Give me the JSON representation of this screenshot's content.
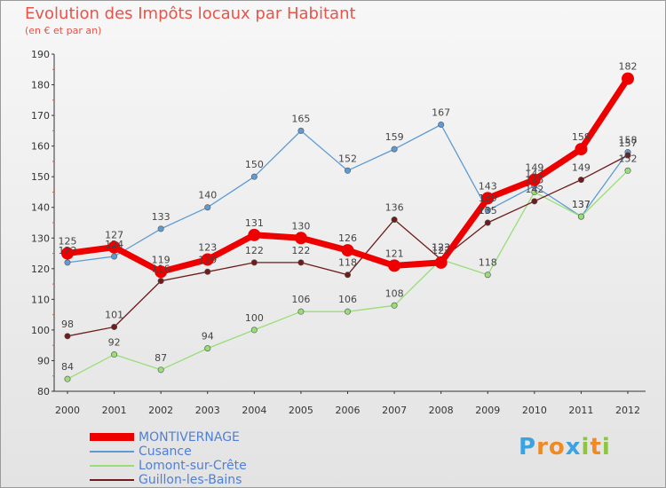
{
  "brand": {
    "letters": [
      {
        "ch": "P",
        "color": "#3aa3e0"
      },
      {
        "ch": "r",
        "color": "#f08a24"
      },
      {
        "ch": "o",
        "color": "#f08a24"
      },
      {
        "ch": "x",
        "color": "#3aa3e0"
      },
      {
        "ch": "i",
        "color": "#8cc63f"
      },
      {
        "ch": "t",
        "color": "#f08a24"
      },
      {
        "ch": "i",
        "color": "#8cc63f"
      }
    ]
  },
  "chart_data": {
    "type": "line",
    "title": "Evolution des Impôts locaux par Habitant",
    "subtitle": "(en € et par an)",
    "xlabel": "",
    "ylabel": "",
    "categories": [
      "2000",
      "2001",
      "2002",
      "2003",
      "2004",
      "2005",
      "2006",
      "2007",
      "2008",
      "2009",
      "2010",
      "2011",
      "2012"
    ],
    "ylim": [
      80,
      190
    ],
    "yticks": [
      80,
      90,
      100,
      110,
      120,
      130,
      140,
      150,
      160,
      170,
      180,
      190
    ],
    "grid": false,
    "series": [
      {
        "name": "MONTIVERNAGE",
        "color": "#ee0000",
        "values": [
          125,
          127,
          119,
          123,
          131,
          130,
          126,
          121,
          122,
          143,
          149,
          159,
          182
        ]
      },
      {
        "name": "Cusance",
        "color": "#5f9bd2",
        "values": [
          122,
          124,
          133,
          140,
          150,
          165,
          152,
          159,
          167,
          139,
          147,
          137,
          158
        ]
      },
      {
        "name": "Lomont-sur-Crête",
        "color": "#99dd77",
        "values": [
          84,
          92,
          87,
          94,
          100,
          106,
          106,
          108,
          123,
          118,
          145,
          137,
          152
        ]
      },
      {
        "name": "Guillon-les-Bains",
        "color": "#6e1c1c",
        "values": [
          98,
          101,
          116,
          119,
          122,
          122,
          118,
          136,
          123,
          135,
          142,
          149,
          157
        ]
      }
    ]
  }
}
